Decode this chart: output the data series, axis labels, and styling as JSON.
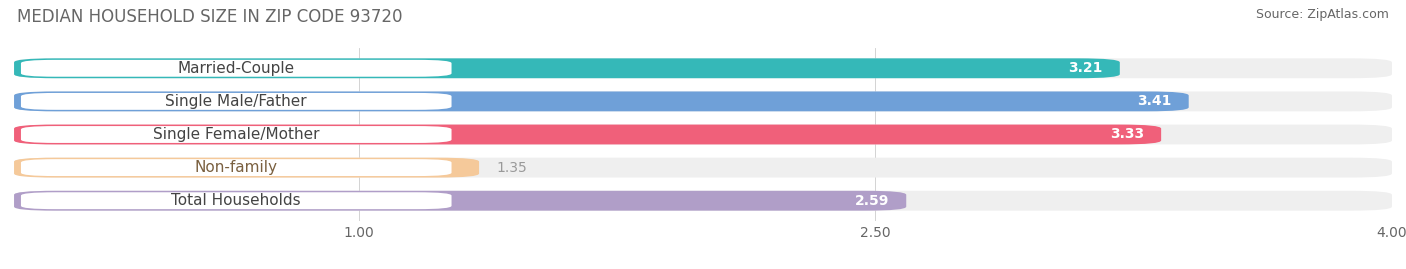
{
  "title": "MEDIAN HOUSEHOLD SIZE IN ZIP CODE 93720",
  "source": "Source: ZipAtlas.com",
  "categories": [
    "Married-Couple",
    "Single Male/Father",
    "Single Female/Mother",
    "Non-family",
    "Total Households"
  ],
  "values": [
    3.21,
    3.41,
    3.33,
    1.35,
    2.59
  ],
  "bar_colors": [
    "#35b8b8",
    "#6fa0d8",
    "#f0607a",
    "#f5c99a",
    "#b09ec8"
  ],
  "label_text_colors": [
    "#444444",
    "#444444",
    "#444444",
    "#7a6040",
    "#444444"
  ],
  "value_text_colors": [
    "white",
    "white",
    "white",
    "#c09060",
    "white"
  ],
  "background_colors": [
    "#efefef",
    "#efefef",
    "#efefef",
    "#efefef",
    "#efefef"
  ],
  "xlim": [
    0,
    4.0
  ],
  "xticks": [
    1.0,
    2.5,
    4.0
  ],
  "label_color": "#666666",
  "title_color": "#666666",
  "title_fontsize": 12,
  "source_fontsize": 9,
  "label_fontsize": 11,
  "value_fontsize": 10,
  "tick_fontsize": 10,
  "fig_bg": "#ffffff"
}
